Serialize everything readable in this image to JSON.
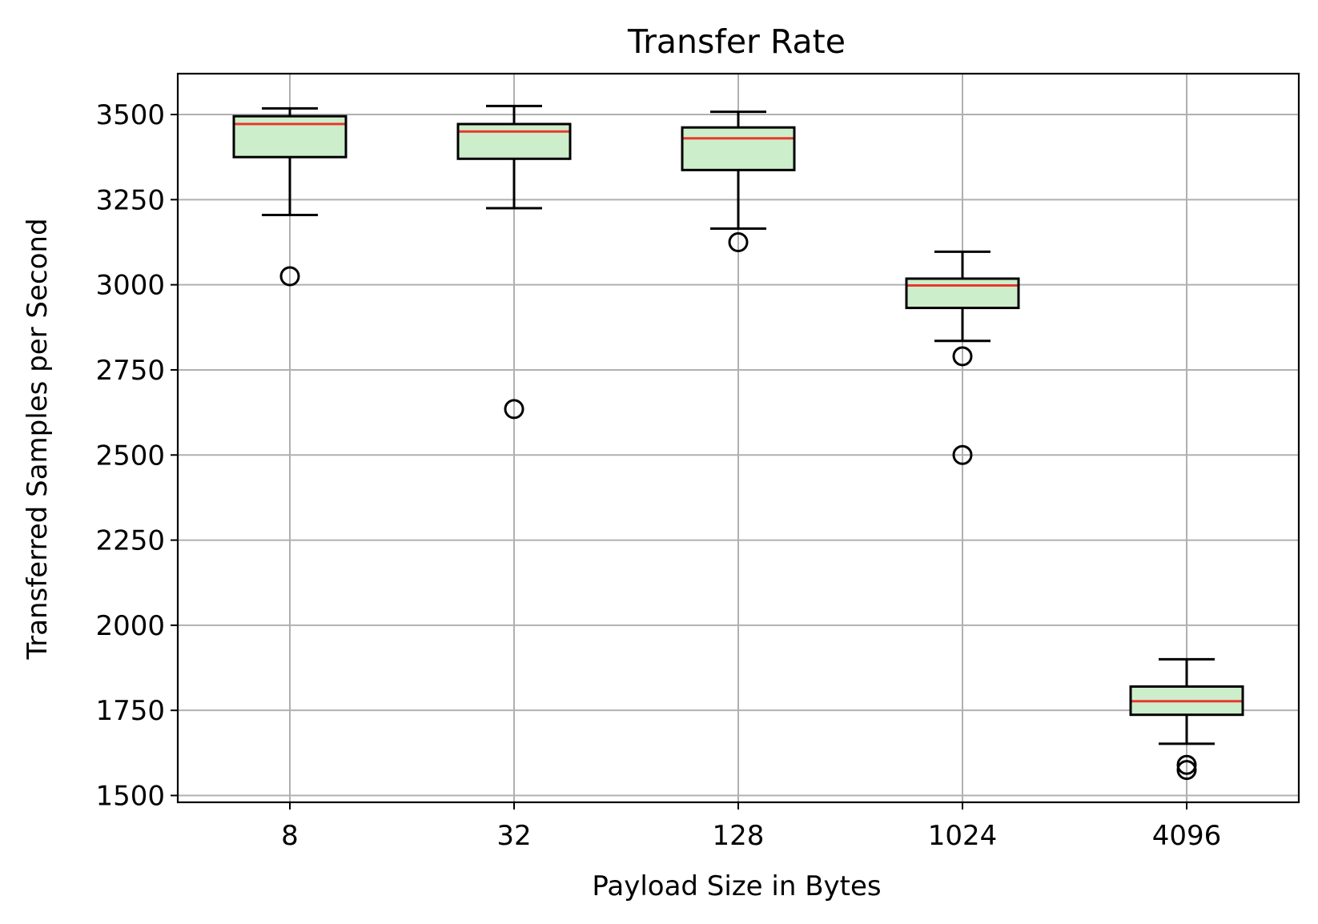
{
  "chart_data": {
    "type": "box",
    "title": "Transfer Rate",
    "xlabel": "Payload Size in Bytes",
    "ylabel": "Transferred Samples per Second",
    "categories": [
      "8",
      "32",
      "128",
      "1024",
      "4096"
    ],
    "ylim": [
      1480,
      3620
    ],
    "yticks": [
      1500,
      1750,
      2000,
      2250,
      2500,
      2750,
      3000,
      3250,
      3500
    ],
    "ytick_labels": [
      "1500",
      "1750",
      "2000",
      "2250",
      "2500",
      "2750",
      "3000",
      "3250",
      "3500"
    ],
    "grid": true,
    "boxes": [
      {
        "category": "8",
        "whisker_low": 3205,
        "q1": 3375,
        "median": 3472,
        "q3": 3495,
        "whisker_high": 3518,
        "fliers": [
          3025
        ]
      },
      {
        "category": "32",
        "whisker_low": 3225,
        "q1": 3370,
        "median": 3450,
        "q3": 3472,
        "whisker_high": 3525,
        "fliers": [
          2635
        ]
      },
      {
        "category": "128",
        "whisker_low": 3165,
        "q1": 3337,
        "median": 3430,
        "q3": 3462,
        "whisker_high": 3508,
        "fliers": [
          3125
        ]
      },
      {
        "category": "1024",
        "whisker_low": 2835,
        "q1": 2932,
        "median": 2998,
        "q3": 3018,
        "whisker_high": 3097,
        "fliers": [
          2790,
          2500
        ]
      },
      {
        "category": "4096",
        "whisker_low": 1652,
        "q1": 1737,
        "median": 1777,
        "q3": 1820,
        "whisker_high": 1900,
        "fliers": [
          1590,
          1575
        ]
      }
    ],
    "colors": {
      "box_fill": "#cdeecb",
      "median": "#e8392f",
      "grid": "#b0b0b0"
    }
  }
}
